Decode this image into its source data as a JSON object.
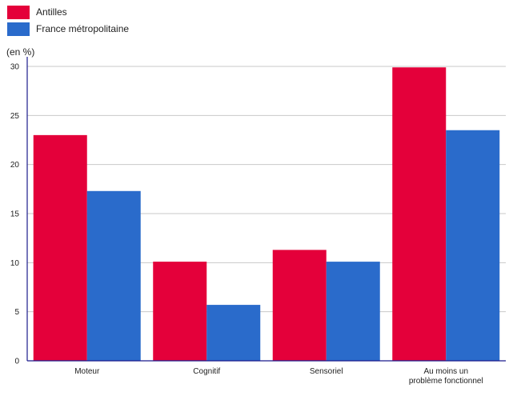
{
  "chart_data": {
    "type": "bar",
    "unit_label": "(en %)",
    "categories": [
      [
        "Moteur"
      ],
      [
        "Cognitif"
      ],
      [
        "Sensoriel"
      ],
      [
        "Au moins un",
        "problème fonctionnel"
      ]
    ],
    "series": [
      {
        "name": "Antilles",
        "color": "#e4003a",
        "values": [
          23.0,
          10.1,
          11.3,
          29.9
        ]
      },
      {
        "name": "France métropolitaine",
        "color": "#2a6bcb",
        "values": [
          17.3,
          5.7,
          10.1,
          23.5
        ]
      }
    ],
    "yticks": [
      0,
      5,
      10,
      15,
      20,
      25,
      30
    ],
    "ylim": [
      0,
      30
    ],
    "grid": true,
    "legend_position": "top-left",
    "axis_color": "#1a1a8c",
    "grid_color": "#c8c8c8"
  }
}
